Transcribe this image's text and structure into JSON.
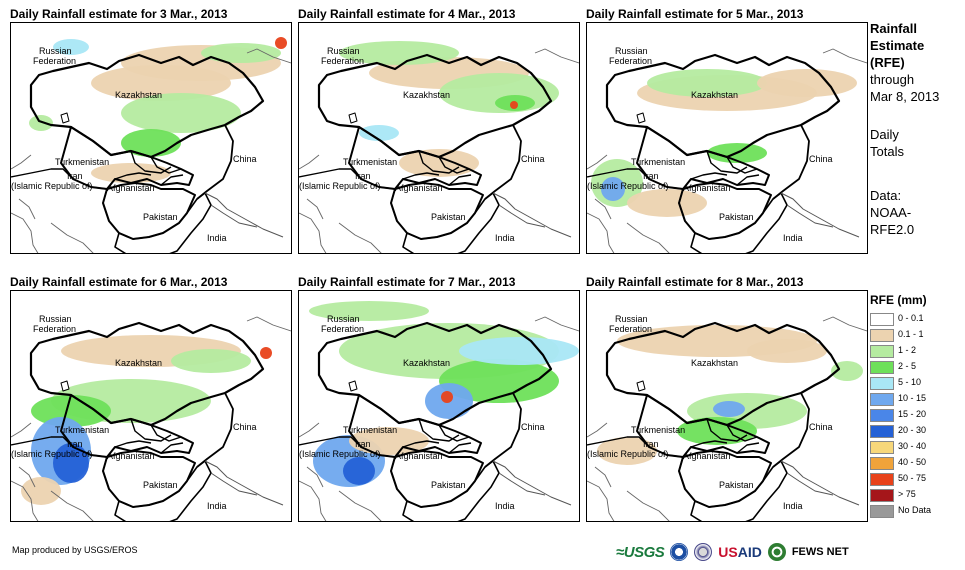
{
  "panels": [
    {
      "title": "Daily Rainfall estimate for 3 Mar., 2013"
    },
    {
      "title": "Daily Rainfall estimate for 4 Mar., 2013"
    },
    {
      "title": "Daily Rainfall estimate for 5 Mar., 2013"
    },
    {
      "title": "Daily Rainfall estimate for 6 Mar., 2013"
    },
    {
      "title": "Daily Rainfall estimate for 7 Mar., 2013"
    },
    {
      "title": "Daily Rainfall estimate for 8 Mar., 2013"
    }
  ],
  "map_labels": {
    "russia_1": "Russian",
    "russia_2": "Federation",
    "kazakhstan": "Kazakhstan",
    "turkmenistan": "Turkmenistan",
    "iran_1": "Iran",
    "iran_2": "(Islamic Republic of)",
    "afghanistan": "Afghanistan",
    "pakistan": "Pakistan",
    "china": "China",
    "india": "India"
  },
  "legend_text": {
    "title_1": "Rainfall",
    "title_2": "Estimate",
    "title_3": "(RFE)",
    "through": "through",
    "date": "Mar 8, 2013",
    "daily": "Daily",
    "totals": "Totals",
    "data_label": "Data:",
    "source_1": "NOAA-",
    "source_2": "RFE2.0"
  },
  "legend": {
    "title": "RFE (mm)",
    "items": [
      {
        "label": "0 - 0.1",
        "color": "#ffffff"
      },
      {
        "label": "0.1 - 1",
        "color": "#ecd3b0"
      },
      {
        "label": "1 - 2",
        "color": "#b5eba0"
      },
      {
        "label": "2 - 5",
        "color": "#6ee05a"
      },
      {
        "label": "5 - 10",
        "color": "#a9e7f5"
      },
      {
        "label": "10 - 15",
        "color": "#6fa8ee"
      },
      {
        "label": "15 - 20",
        "color": "#4a86e8"
      },
      {
        "label": "20 - 30",
        "color": "#2461d6"
      },
      {
        "label": "30 - 40",
        "color": "#f7d77a"
      },
      {
        "label": "40 - 50",
        "color": "#f0a33a"
      },
      {
        "label": "50 - 75",
        "color": "#e8421a"
      },
      {
        "label": "> 75",
        "color": "#a5161a"
      },
      {
        "label": "No Data",
        "color": "#999999"
      }
    ]
  },
  "footer": {
    "credit": "Map produced by USGS/EROS",
    "usgs": "≈USGS",
    "usaid_1": "US",
    "usaid_2": "AID",
    "fews": "FEWS NET"
  }
}
